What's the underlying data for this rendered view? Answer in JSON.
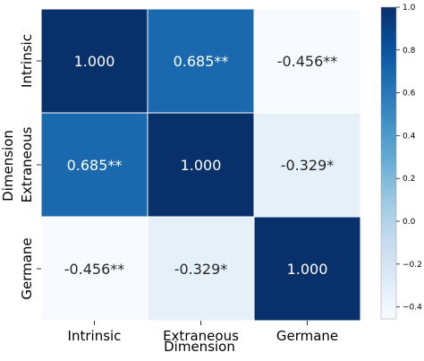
{
  "chart_data": {
    "type": "heatmap",
    "xlabel": "Dimension",
    "ylabel": "Dimension",
    "categories": [
      "Intrinsic",
      "Extraneous",
      "Germane"
    ],
    "values": [
      [
        1.0,
        0.685,
        -0.456
      ],
      [
        0.685,
        1.0,
        -0.329
      ],
      [
        -0.456,
        -0.329,
        1.0
      ]
    ],
    "labels": [
      [
        "1.000",
        "0.685**",
        "-0.456**"
      ],
      [
        "0.685**",
        "1.000",
        "-0.329*"
      ],
      [
        "-0.456**",
        "-0.329*",
        "1.000"
      ]
    ],
    "colormap": "Blues",
    "colorbar": {
      "range": [
        -0.456,
        1.0
      ],
      "ticks": [
        1.0,
        0.8,
        0.6,
        0.4,
        0.2,
        0.0,
        -0.2,
        -0.4
      ],
      "tick_labels": [
        "1.0",
        "0.8",
        "0.6",
        "0.4",
        "0.2",
        "0.0",
        "−0.2",
        "−0.4"
      ]
    }
  }
}
